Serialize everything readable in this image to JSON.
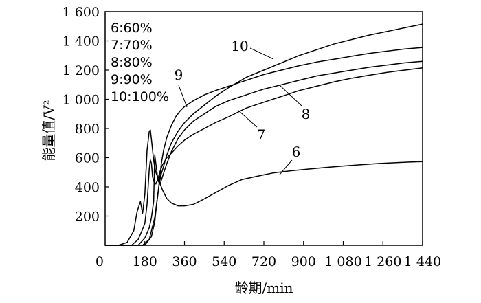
{
  "chart_data": {
    "type": "line",
    "title": "",
    "xlabel": "龄期/min",
    "ylabel": "能量值/V²",
    "xlim": [
      0,
      1440
    ],
    "ylim": [
      0,
      1600
    ],
    "x_ticks": [
      0,
      180,
      360,
      540,
      720,
      900,
      1080,
      1260,
      1440
    ],
    "x_tick_labels": [
      "0",
      "180",
      "360",
      "540",
      "720",
      "900",
      "1 080",
      "1 260",
      "1 440"
    ],
    "y_ticks": [
      200,
      400,
      600,
      800,
      1000,
      1200,
      1400,
      1600
    ],
    "y_tick_labels": [
      "200",
      "400",
      "600",
      "800",
      "1 000",
      "1 200",
      "1 400",
      "1 600"
    ],
    "grid": false,
    "legend": {
      "placement": "top-left",
      "entries": [
        "6:60%",
        "7:70%",
        "8:80%",
        "9:90%",
        "10:100%"
      ]
    },
    "series": [
      {
        "name": "6",
        "x": [
          0,
          60,
          100,
          130,
          145,
          160,
          170,
          180,
          190,
          200,
          205,
          212,
          220,
          230,
          240,
          250,
          260,
          280,
          300,
          330,
          360,
          400,
          440,
          500,
          560,
          620,
          680,
          760,
          840,
          920,
          1000,
          1080,
          1160,
          1240,
          1320,
          1380,
          1440
        ],
        "y": [
          0,
          0,
          20,
          100,
          230,
          300,
          220,
          350,
          650,
          780,
          790,
          700,
          580,
          500,
          460,
          420,
          380,
          320,
          290,
          270,
          270,
          280,
          310,
          360,
          410,
          450,
          470,
          495,
          510,
          522,
          533,
          543,
          552,
          560,
          566,
          570,
          573
        ]
      },
      {
        "name": "7",
        "x": [
          0,
          120,
          150,
          170,
          180,
          190,
          200,
          205,
          210,
          215,
          220,
          230,
          240,
          250,
          260,
          280,
          300,
          330,
          360,
          400,
          450,
          500,
          560,
          640,
          720,
          800,
          880,
          960,
          1040,
          1120,
          1200,
          1280,
          1360,
          1440
        ],
        "y": [
          0,
          0,
          40,
          110,
          150,
          280,
          520,
          585,
          560,
          470,
          440,
          420,
          460,
          510,
          550,
          600,
          630,
          680,
          720,
          760,
          800,
          840,
          880,
          940,
          980,
          1020,
          1060,
          1090,
          1120,
          1145,
          1165,
          1185,
          1200,
          1215
        ]
      },
      {
        "name": "8",
        "x": [
          0,
          150,
          180,
          200,
          210,
          220,
          225,
          230,
          240,
          250,
          260,
          280,
          300,
          330,
          360,
          400,
          450,
          500,
          560,
          640,
          720,
          800,
          880,
          960,
          1040,
          1120,
          1200,
          1280,
          1360,
          1440
        ],
        "y": [
          0,
          0,
          50,
          120,
          190,
          300,
          620,
          560,
          440,
          420,
          470,
          560,
          640,
          730,
          790,
          850,
          900,
          950,
          990,
          1030,
          1070,
          1100,
          1130,
          1160,
          1180,
          1200,
          1220,
          1235,
          1250,
          1260
        ]
      },
      {
        "name": "9",
        "x": [
          0,
          170,
          200,
          215,
          225,
          235,
          245,
          255,
          265,
          280,
          300,
          320,
          340,
          360,
          400,
          450,
          500,
          560,
          640,
          720,
          800,
          880,
          960,
          1040,
          1120,
          1200,
          1280,
          1360,
          1440
        ],
        "y": [
          0,
          0,
          40,
          130,
          190,
          300,
          420,
          560,
          650,
          740,
          820,
          880,
          920,
          950,
          990,
          1030,
          1060,
          1090,
          1130,
          1170,
          1200,
          1230,
          1255,
          1275,
          1295,
          1315,
          1330,
          1345,
          1355
        ]
      },
      {
        "name": "10",
        "x": [
          0,
          180,
          210,
          225,
          235,
          245,
          255,
          265,
          280,
          300,
          330,
          360,
          400,
          450,
          500,
          560,
          640,
          720,
          800,
          880,
          960,
          1040,
          1120,
          1200,
          1280,
          1360,
          1440
        ],
        "y": [
          0,
          0,
          60,
          160,
          300,
          420,
          490,
          540,
          620,
          700,
          780,
          840,
          900,
          960,
          1020,
          1080,
          1150,
          1200,
          1250,
          1300,
          1340,
          1380,
          1410,
          1440,
          1465,
          1490,
          1515
        ]
      }
    ],
    "annotations": [
      {
        "text": "10",
        "series": "10"
      },
      {
        "text": "9",
        "series": "9"
      },
      {
        "text": "8",
        "series": "8"
      },
      {
        "text": "7",
        "series": "7"
      },
      {
        "text": "6",
        "series": "6"
      }
    ]
  }
}
